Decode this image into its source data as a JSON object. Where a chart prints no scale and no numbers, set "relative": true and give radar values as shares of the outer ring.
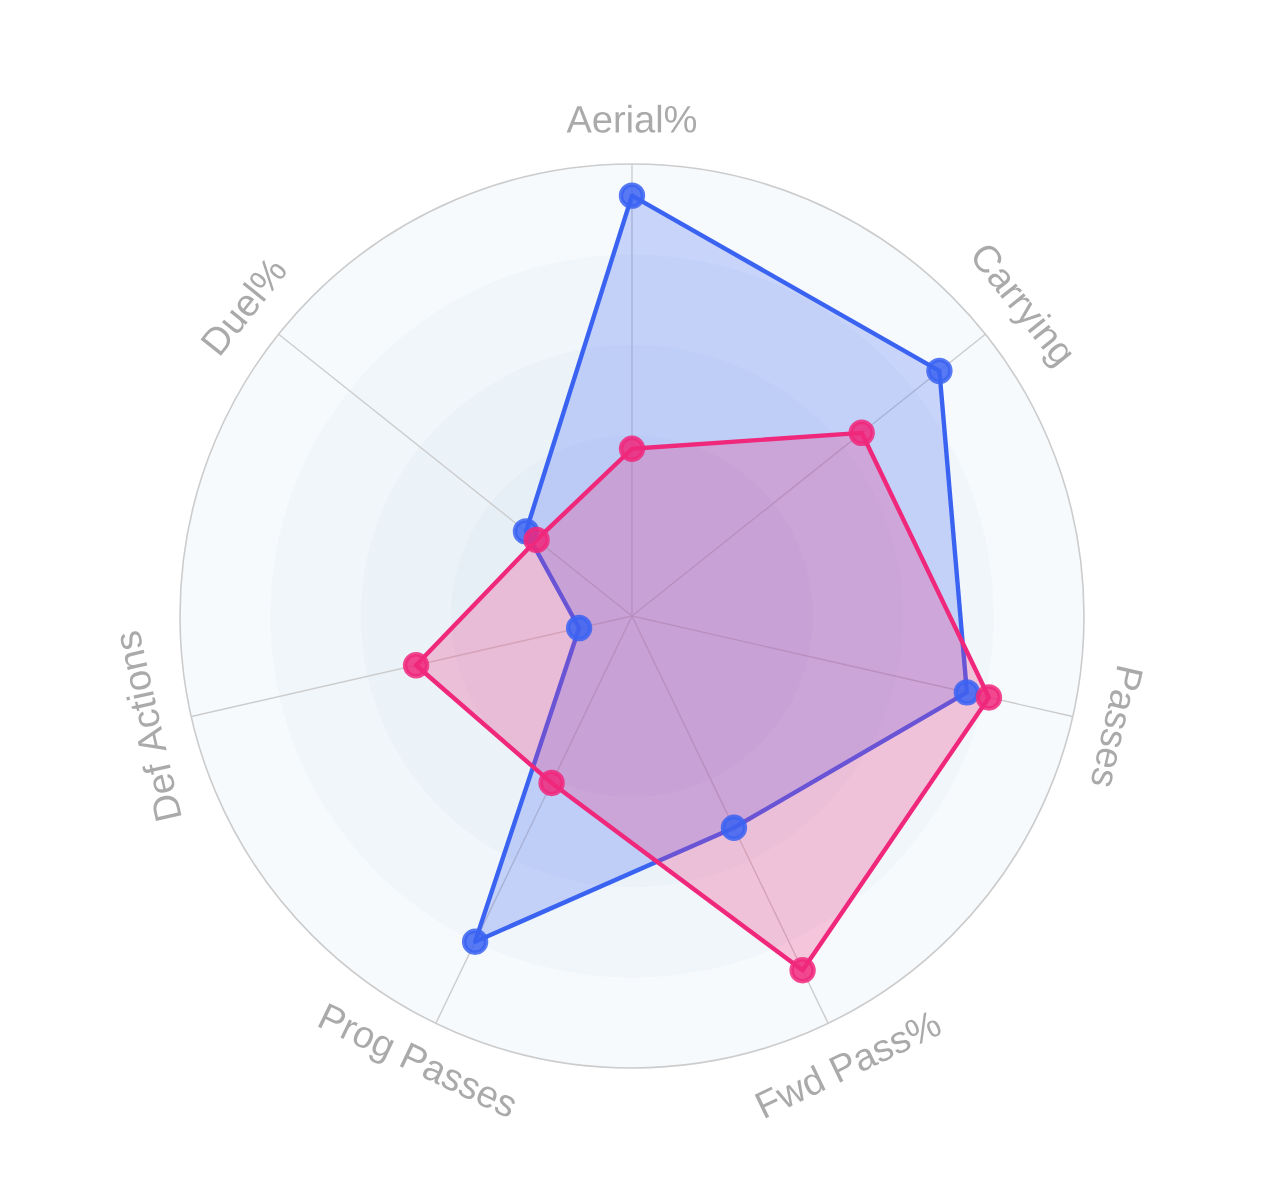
{
  "chart_data": {
    "type": "radar",
    "relative": true,
    "grid": true,
    "marker": "circle",
    "line_style": "solid",
    "categories": [
      "Aerial%",
      "Carrying",
      "Passes",
      "Fwd Pass%",
      "Prog Passes",
      "Def Actions",
      "Duel%"
    ],
    "series": [
      {
        "color": "#3b63f2",
        "values": [
          0.93,
          0.87,
          0.76,
          0.52,
          0.8,
          0.12,
          0.3
        ]
      },
      {
        "color": "#f0287c",
        "values": [
          0.37,
          0.65,
          0.81,
          0.87,
          0.41,
          0.49,
          0.27
        ]
      }
    ]
  }
}
